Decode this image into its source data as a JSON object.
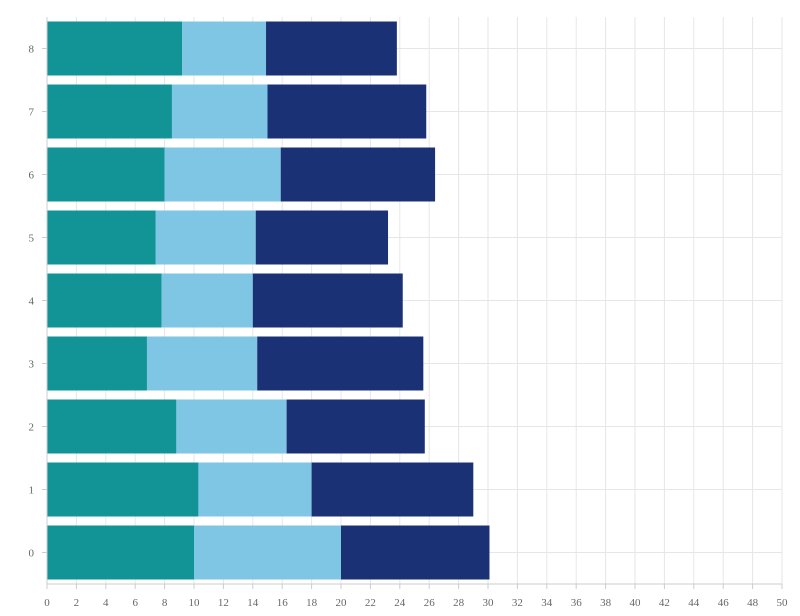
{
  "chart_data": {
    "type": "bar",
    "orientation": "horizontal",
    "stacked": true,
    "categories": [
      "0",
      "1",
      "2",
      "3",
      "4",
      "5",
      "6",
      "7",
      "8"
    ],
    "series": [
      {
        "color": "#129497",
        "values": [
          10.0,
          10.3,
          8.8,
          6.8,
          7.8,
          7.4,
          8.0,
          8.5,
          9.2
        ]
      },
      {
        "color": "#7ec6e3",
        "values": [
          10.0,
          7.7,
          7.5,
          7.5,
          6.2,
          6.8,
          7.9,
          6.5,
          5.7
        ]
      },
      {
        "color": "#1b3176",
        "values": [
          10.1,
          11.0,
          9.4,
          11.3,
          10.2,
          9.0,
          10.5,
          10.8,
          8.9
        ]
      }
    ],
    "xlim": [
      0,
      50
    ],
    "x_ticks": [
      "0",
      "2",
      "4",
      "6",
      "8",
      "10",
      "12",
      "14",
      "16",
      "18",
      "20",
      "22",
      "24",
      "26",
      "28",
      "30",
      "32",
      "34",
      "36",
      "38",
      "40",
      "42",
      "44",
      "46",
      "48",
      "50"
    ],
    "grid": true,
    "legend": "none",
    "title": "",
    "xlabel": "",
    "ylabel": ""
  }
}
